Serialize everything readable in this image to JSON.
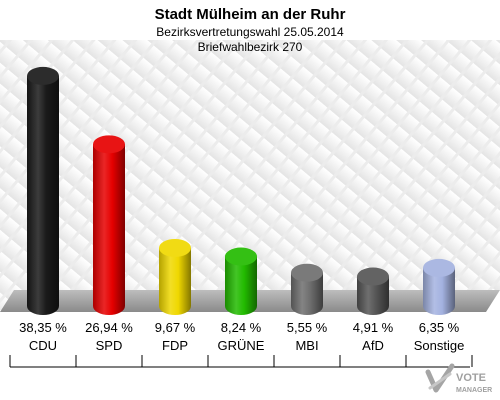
{
  "chart_data": {
    "type": "bar",
    "title": "Stadt Mülheim an der Ruhr",
    "subtitle_lines": [
      "Bezirksvertretungswahl 25.05.2014",
      "Briefwahlbezirk 270"
    ],
    "categories": [
      "CDU",
      "SPD",
      "FDP",
      "GRÜNE",
      "MBI",
      "AfD",
      "Sonstige"
    ],
    "values": [
      38.35,
      26.94,
      9.67,
      8.24,
      5.55,
      4.91,
      6.35
    ],
    "value_labels": [
      "38,35 %",
      "26,94 %",
      "9,67 %",
      "8,24 %",
      "5,55 %",
      "4,91 %",
      "6,35 %"
    ],
    "colors": [
      "#1a1a1a",
      "#e60000",
      "#f0d800",
      "#22bb00",
      "#6e6e6e",
      "#555555",
      "#a4b2e0"
    ],
    "ylim": [
      0,
      40
    ]
  },
  "logo": {
    "line1": "VOTE",
    "line2": "MANAGER"
  }
}
